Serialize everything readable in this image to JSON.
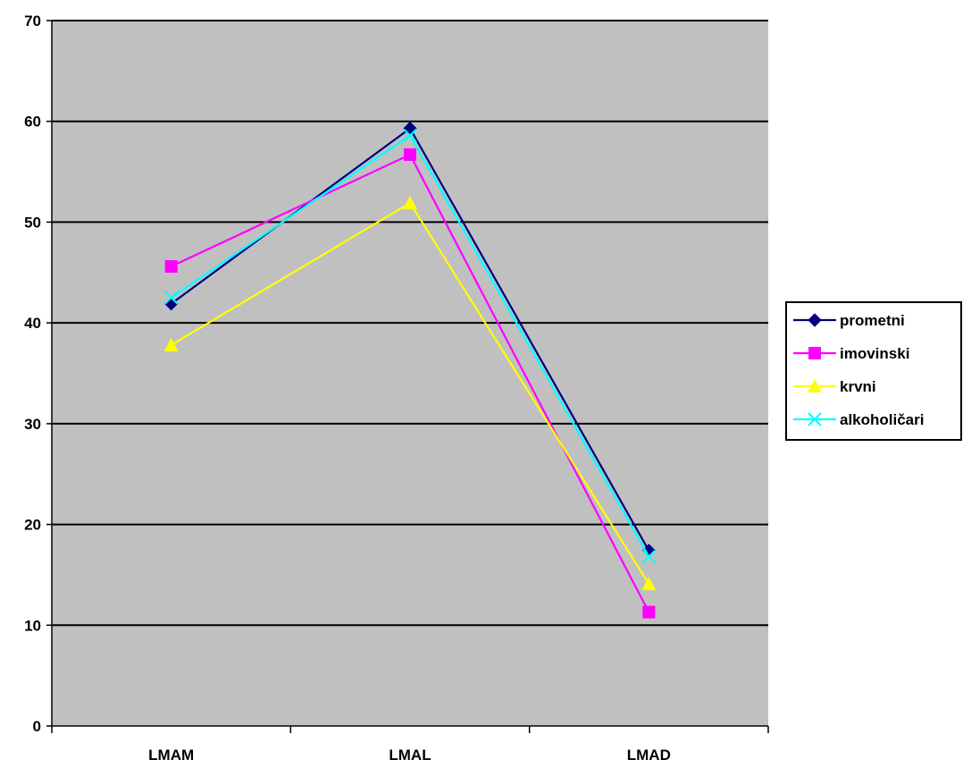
{
  "chart_data": {
    "type": "line",
    "title": "",
    "xlabel": "",
    "ylabel": "",
    "categories": [
      "LMAM",
      "LMAL",
      "LMAD"
    ],
    "ylim": [
      0,
      70
    ],
    "y_ticks": [
      0,
      10,
      20,
      30,
      40,
      50,
      60,
      70
    ],
    "grid": true,
    "legend_position": "right",
    "plot_background": "#C0C0C0",
    "series": [
      {
        "name": "prometni",
        "values": [
          41.9,
          59.3,
          17.4
        ],
        "color": "#000080",
        "marker": "diamond"
      },
      {
        "name": "imovinski",
        "values": [
          45.6,
          56.7,
          11.3
        ],
        "color": "#FF00FF",
        "marker": "square"
      },
      {
        "name": "krvni",
        "values": [
          37.8,
          51.9,
          14.1
        ],
        "color": "#FFFF00",
        "marker": "triangle"
      },
      {
        "name": "alkoholičari",
        "values": [
          42.5,
          58.6,
          16.8
        ],
        "color": "#00FFFF",
        "marker": "x"
      }
    ]
  }
}
